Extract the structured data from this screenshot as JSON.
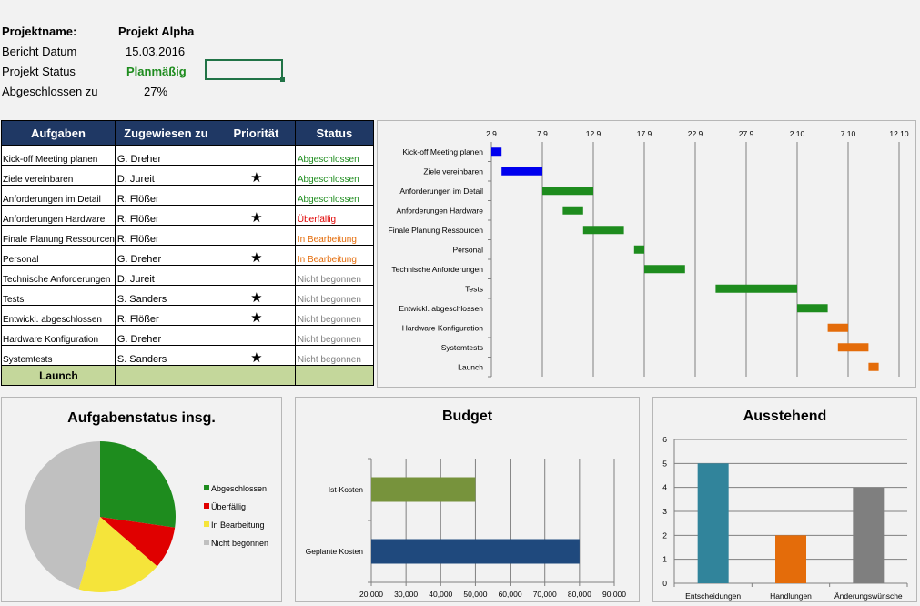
{
  "project": {
    "name_label": "Projektname:",
    "name_value": "Projekt Alpha",
    "date_label": "Bericht Datum",
    "date_value": "15.03.2016",
    "status_label": "Projekt Status",
    "status_value": "Planmäßig",
    "done_label": "Abgeschlossen zu",
    "done_value": "27%"
  },
  "table": {
    "headers": [
      "Aufgaben",
      "Zugewiesen zu",
      "Priorität",
      "Status"
    ],
    "rows": [
      {
        "task": "Kick-off Meeting planen",
        "assignee": "G. Dreher",
        "priority": "",
        "status": "Abgeschlossen",
        "status_color": "#1e8c1e"
      },
      {
        "task": "Ziele vereinbaren",
        "assignee": "D. Jureit",
        "priority": "★",
        "status": "Abgeschlossen",
        "status_color": "#1e8c1e"
      },
      {
        "task": "Anforderungen  im Detail",
        "assignee": "R. Flößer",
        "priority": "",
        "status": "Abgeschlossen",
        "status_color": "#1e8c1e"
      },
      {
        "task": "Anforderungen Hardware",
        "assignee": "R. Flößer",
        "priority": "★",
        "status": "Überfällig",
        "status_color": "#e00000"
      },
      {
        "task": "Finale Planung Ressourcen",
        "assignee": "R. Flößer",
        "priority": "",
        "status": "In Bearbeitung",
        "status_color": "#e46c0a"
      },
      {
        "task": "Personal",
        "assignee": "G. Dreher",
        "priority": "★",
        "status": "In Bearbeitung",
        "status_color": "#e46c0a"
      },
      {
        "task": "Technische Anforderungen",
        "assignee": "D. Jureit",
        "priority": "",
        "status": "Nicht begonnen",
        "status_color": "#7f7f7f"
      },
      {
        "task": "Tests",
        "assignee": "S. Sanders",
        "priority": "★",
        "status": "Nicht begonnen",
        "status_color": "#7f7f7f"
      },
      {
        "task": "Entwickl. abgeschlossen",
        "assignee": "R. Flößer",
        "priority": "★",
        "status": "Nicht begonnen",
        "status_color": "#7f7f7f"
      },
      {
        "task": "Hardware Konfiguration",
        "assignee": "G. Dreher",
        "priority": "",
        "status": "Nicht begonnen",
        "status_color": "#7f7f7f"
      },
      {
        "task": "Systemtests",
        "assignee": "S. Sanders",
        "priority": "★",
        "status": "Nicht begonnen",
        "status_color": "#7f7f7f"
      }
    ],
    "launch_label": "Launch"
  },
  "chart_data": [
    {
      "type": "bar",
      "subtype": "gantt",
      "title": "",
      "x_ticks": [
        "2.9",
        "7.9",
        "12.9",
        "17.9",
        "22.9",
        "27.9",
        "2.10",
        "7.10",
        "12.10"
      ],
      "xlim": [
        "2016-09-02",
        "2016-10-12"
      ],
      "grid": true,
      "tasks": [
        {
          "name": "Kick-off Meeting planen",
          "start": "2016-09-02",
          "end": "2016-09-03",
          "color": "#0000ee"
        },
        {
          "name": "Ziele vereinbaren",
          "start": "2016-09-03",
          "end": "2016-09-07",
          "color": "#0000ee"
        },
        {
          "name": "Anforderungen  im Detail",
          "start": "2016-09-07",
          "end": "2016-09-12",
          "color": "#1e8c1e"
        },
        {
          "name": "Anforderungen Hardware",
          "start": "2016-09-09",
          "end": "2016-09-11",
          "color": "#1e8c1e"
        },
        {
          "name": "Finale Planung Ressourcen",
          "start": "2016-09-11",
          "end": "2016-09-15",
          "color": "#1e8c1e"
        },
        {
          "name": "Personal",
          "start": "2016-09-16",
          "end": "2016-09-17",
          "color": "#1e8c1e"
        },
        {
          "name": "Technische Anforderungen",
          "start": "2016-09-17",
          "end": "2016-09-21",
          "color": "#1e8c1e"
        },
        {
          "name": "Tests",
          "start": "2016-09-24",
          "end": "2016-10-02",
          "color": "#1e8c1e"
        },
        {
          "name": "Entwickl. abgeschlossen",
          "start": "2016-10-02",
          "end": "2016-10-05",
          "color": "#1e8c1e"
        },
        {
          "name": "Hardware Konfiguration",
          "start": "2016-10-05",
          "end": "2016-10-07",
          "color": "#e46c0a"
        },
        {
          "name": "Systemtests",
          "start": "2016-10-06",
          "end": "2016-10-09",
          "color": "#e46c0a"
        },
        {
          "name": "Launch",
          "start": "2016-10-09",
          "end": "2016-10-10",
          "color": "#e46c0a"
        }
      ]
    },
    {
      "type": "pie",
      "title": "Aufgabenstatus insg.",
      "legend": "right",
      "slices": [
        {
          "name": "Abgeschlossen",
          "value": 3,
          "color": "#1e8c1e"
        },
        {
          "name": "Überfällig",
          "value": 1,
          "color": "#e00000"
        },
        {
          "name": "In Bearbeitung",
          "value": 2,
          "color": "#f5e43a"
        },
        {
          "name": "Nicht begonnen",
          "value": 5,
          "color": "#c0c0c0"
        }
      ]
    },
    {
      "type": "bar",
      "orientation": "horizontal",
      "title": "Budget",
      "categories": [
        "Ist-Kosten",
        "Geplante Kosten"
      ],
      "values": [
        50000,
        80000
      ],
      "colors": [
        "#77933c",
        "#1f497d"
      ],
      "xlim": [
        20000,
        90000
      ],
      "x_ticks": [
        "20,000",
        "30,000",
        "40,000",
        "50,000",
        "60,000",
        "70,000",
        "80,000",
        "90,000"
      ],
      "grid": true
    },
    {
      "type": "bar",
      "title": "Ausstehend",
      "categories": [
        "Entscheidungen",
        "Handlungen",
        "Änderungswünsche"
      ],
      "values": [
        5,
        2,
        4
      ],
      "colors": [
        "#31849b",
        "#e46c0a",
        "#7f7f7f"
      ],
      "ylim": [
        0,
        6
      ],
      "y_ticks": [
        "0",
        "1",
        "2",
        "3",
        "4",
        "5",
        "6"
      ],
      "grid": true
    }
  ]
}
